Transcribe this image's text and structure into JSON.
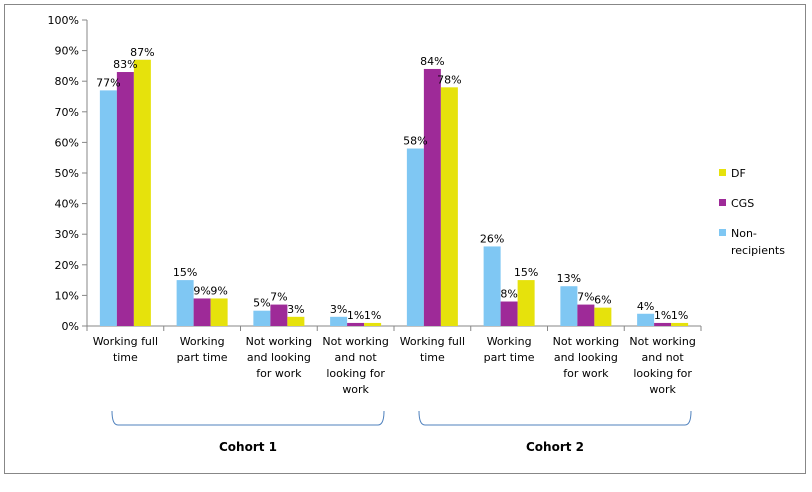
{
  "chart_data": {
    "type": "bar",
    "y_axis": {
      "ylim": [
        0,
        1
      ],
      "ticks": [
        0,
        0.1,
        0.2,
        0.3,
        0.4,
        0.5,
        0.6,
        0.7,
        0.8,
        0.9,
        1.0
      ],
      "tick_labels": [
        "0%",
        "10%",
        "20%",
        "30%",
        "40%",
        "50%",
        "60%",
        "70%",
        "80%",
        "90%",
        "100%"
      ]
    },
    "categories": [
      [
        "Working full",
        "time"
      ],
      [
        "Working",
        "part time"
      ],
      [
        "Not working",
        "and looking",
        "for work"
      ],
      [
        "Not working",
        "and not",
        "looking for",
        "work"
      ],
      [
        "Working full",
        "time"
      ],
      [
        "Working",
        "part time"
      ],
      [
        "Not working",
        "and looking",
        "for work"
      ],
      [
        "Not working",
        "and not",
        "looking for",
        "work"
      ]
    ],
    "groups": [
      {
        "label": "Cohort 1",
        "category_indices": [
          0,
          1,
          2,
          3
        ]
      },
      {
        "label": "Cohort 2",
        "category_indices": [
          4,
          5,
          6,
          7
        ]
      }
    ],
    "series": [
      {
        "name": "Non-recipients",
        "color": "#7fc7f3",
        "values": [
          0.77,
          0.15,
          0.05,
          0.03,
          0.58,
          0.26,
          0.13,
          0.04
        ],
        "labels": [
          "77%",
          "15%",
          "5%",
          "3%",
          "58%",
          "26%",
          "13%",
          "4%"
        ]
      },
      {
        "name": "CGS",
        "color": "#9e2a98",
        "values": [
          0.83,
          0.09,
          0.07,
          0.01,
          0.84,
          0.08,
          0.07,
          0.01
        ],
        "labels": [
          "83%",
          "9%",
          "7%",
          "1%",
          "84%",
          "8%",
          "7%",
          "1%"
        ]
      },
      {
        "name": "DF",
        "color": "#e6e20c",
        "values": [
          0.87,
          0.09,
          0.03,
          0.01,
          0.78,
          0.15,
          0.06,
          0.01
        ],
        "labels": [
          "87%",
          "9%",
          "3%",
          "1%",
          "78%",
          "15%",
          "6%",
          "1%"
        ]
      }
    ],
    "legend": {
      "placement": "right",
      "entries": [
        {
          "label": "DF",
          "color": "#e6e20c"
        },
        {
          "label": "CGS",
          "color": "#9e2a98"
        },
        {
          "label": [
            "Non-",
            "recipients"
          ],
          "color": "#7fc7f3"
        }
      ]
    },
    "grid": false
  }
}
